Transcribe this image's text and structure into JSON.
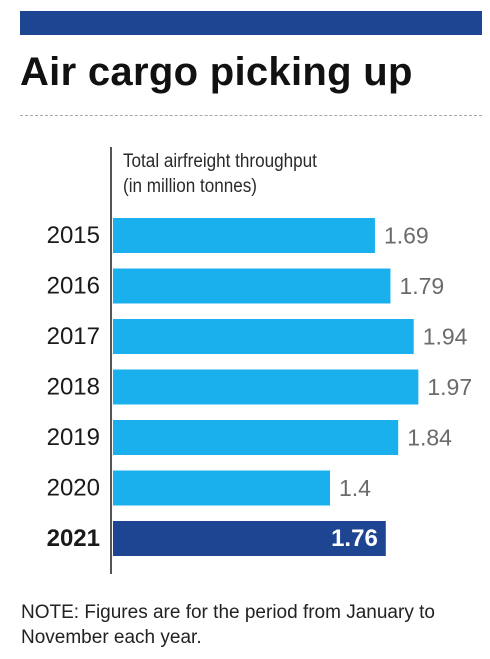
{
  "header": {
    "title": "Air cargo picking up",
    "band_color": "#1d4592"
  },
  "chart_data": {
    "type": "bar",
    "orientation": "horizontal",
    "subtitle_lines": [
      "Total airfreight throughput",
      "(in million tonnes)"
    ],
    "categories": [
      "2015",
      "2016",
      "2017",
      "2018",
      "2019",
      "2020",
      "2021"
    ],
    "values": [
      1.69,
      1.79,
      1.94,
      1.97,
      1.84,
      1.4,
      1.76
    ],
    "value_labels": [
      "1.69",
      "1.79",
      "1.94",
      "1.97",
      "1.84",
      "1.4",
      "1.76"
    ],
    "highlight_category": "2021",
    "bar_color": "#1ab0ee",
    "highlight_color": "#1d4592",
    "xlim": [
      0,
      2.0
    ],
    "grid": false
  },
  "footer": {
    "note": "NOTE: Figures are for the period from January to November each year."
  }
}
